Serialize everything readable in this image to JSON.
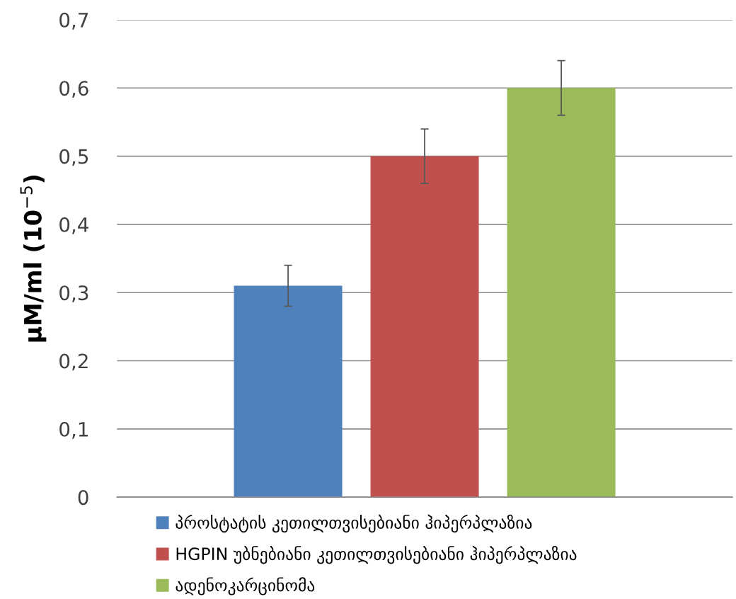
{
  "chart_data": {
    "type": "bar",
    "ylabel": "µM/ml (10$^{−5}$)",
    "categories": [
      null
    ],
    "series": [
      {
        "name": "პროსტატის კეთილთვისებიანი ჰიპერპლაზია",
        "color": "#4f81bd",
        "values": [
          0.31
        ],
        "errors": [
          0.03
        ]
      },
      {
        "name": "HGPIN უბნებიანი კეთილთვისებიანი ჰიპერპლაზია",
        "color": "#c0504d",
        "values": [
          0.5
        ],
        "errors": [
          0.04
        ]
      },
      {
        "name": "ადენოკარცინომა",
        "color": "#9bbb59",
        "values": [
          0.6
        ],
        "errors": [
          0.04
        ]
      }
    ],
    "ylim": [
      0,
      0.7
    ],
    "yticks": [
      0,
      {
        "value": 0.1,
        "label": "0,1"
      },
      {
        "value": 0.2,
        "label": "0,2"
      },
      {
        "value": 0.3,
        "label": "0,3"
      },
      {
        "value": 0.4,
        "label": "0,4"
      },
      {
        "value": 0.5,
        "label": "0,5"
      },
      {
        "value": 0.6,
        "label": "0,6"
      },
      {
        "value": 0.7,
        "label": "0,7"
      }
    ],
    "grid": "y",
    "legend": "bottom"
  }
}
